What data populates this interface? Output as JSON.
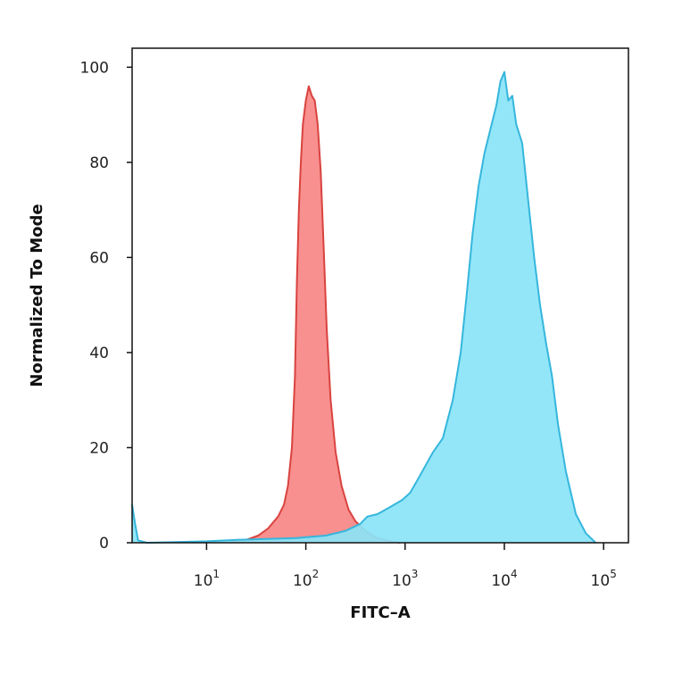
{
  "chart_data": {
    "type": "area",
    "title": "",
    "xlabel": "FITC–A",
    "ylabel": "Normalized To Mode",
    "x_scale": "log",
    "xlim_log10": [
      0.25,
      5.25
    ],
    "ylim": [
      0,
      104
    ],
    "x_ticks": [
      {
        "base": "10",
        "exp": "1",
        "log10": 1
      },
      {
        "base": "10",
        "exp": "2",
        "log10": 2
      },
      {
        "base": "10",
        "exp": "3",
        "log10": 3
      },
      {
        "base": "10",
        "exp": "4",
        "log10": 4
      },
      {
        "base": "10",
        "exp": "5",
        "log10": 5
      }
    ],
    "y_ticks": [
      "0",
      "20",
      "40",
      "60",
      "80",
      "100"
    ],
    "grid": false,
    "series": [
      {
        "fill": "#f7908f",
        "stroke": "#d9433f",
        "points": [
          [
            1.25,
            0.2
          ],
          [
            1.4,
            0.6
          ],
          [
            1.52,
            1.5
          ],
          [
            1.62,
            3
          ],
          [
            1.72,
            5.5
          ],
          [
            1.78,
            8
          ],
          [
            1.82,
            12
          ],
          [
            1.86,
            20
          ],
          [
            1.89,
            35
          ],
          [
            1.91,
            55
          ],
          [
            1.93,
            70
          ],
          [
            1.95,
            80
          ],
          [
            1.97,
            88
          ],
          [
            2.0,
            93
          ],
          [
            2.03,
            96
          ],
          [
            2.06,
            94
          ],
          [
            2.09,
            93
          ],
          [
            2.12,
            88
          ],
          [
            2.15,
            78
          ],
          [
            2.18,
            62
          ],
          [
            2.21,
            45
          ],
          [
            2.25,
            30
          ],
          [
            2.3,
            19
          ],
          [
            2.36,
            12
          ],
          [
            2.43,
            7
          ],
          [
            2.5,
            4.5
          ],
          [
            2.6,
            2.5
          ],
          [
            2.72,
            1
          ],
          [
            2.85,
            0.3
          ],
          [
            2.95,
            0
          ]
        ]
      },
      {
        "fill": "#8ae4f7",
        "stroke": "#35b6dc",
        "points": [
          [
            0.25,
            8
          ],
          [
            0.28,
            4
          ],
          [
            0.31,
            0.5
          ],
          [
            0.4,
            0
          ],
          [
            1.0,
            0.3
          ],
          [
            1.3,
            0.6
          ],
          [
            1.6,
            0.8
          ],
          [
            1.9,
            1.0
          ],
          [
            2.2,
            1.5
          ],
          [
            2.4,
            2.5
          ],
          [
            2.55,
            4
          ],
          [
            2.62,
            5.5
          ],
          [
            2.72,
            6
          ],
          [
            2.85,
            7.5
          ],
          [
            2.97,
            9
          ],
          [
            3.05,
            10.5
          ],
          [
            3.12,
            13
          ],
          [
            3.2,
            16
          ],
          [
            3.28,
            19
          ],
          [
            3.38,
            22
          ],
          [
            3.48,
            30
          ],
          [
            3.56,
            40
          ],
          [
            3.62,
            52
          ],
          [
            3.68,
            65
          ],
          [
            3.74,
            75
          ],
          [
            3.8,
            82
          ],
          [
            3.86,
            87
          ],
          [
            3.92,
            92
          ],
          [
            3.96,
            97
          ],
          [
            4.0,
            99
          ],
          [
            4.04,
            93
          ],
          [
            4.08,
            94
          ],
          [
            4.12,
            88
          ],
          [
            4.18,
            84
          ],
          [
            4.24,
            72
          ],
          [
            4.3,
            60
          ],
          [
            4.36,
            50
          ],
          [
            4.42,
            42
          ],
          [
            4.48,
            35
          ],
          [
            4.54,
            25
          ],
          [
            4.62,
            15
          ],
          [
            4.72,
            6
          ],
          [
            4.82,
            2
          ],
          [
            4.92,
            0
          ]
        ]
      }
    ]
  }
}
